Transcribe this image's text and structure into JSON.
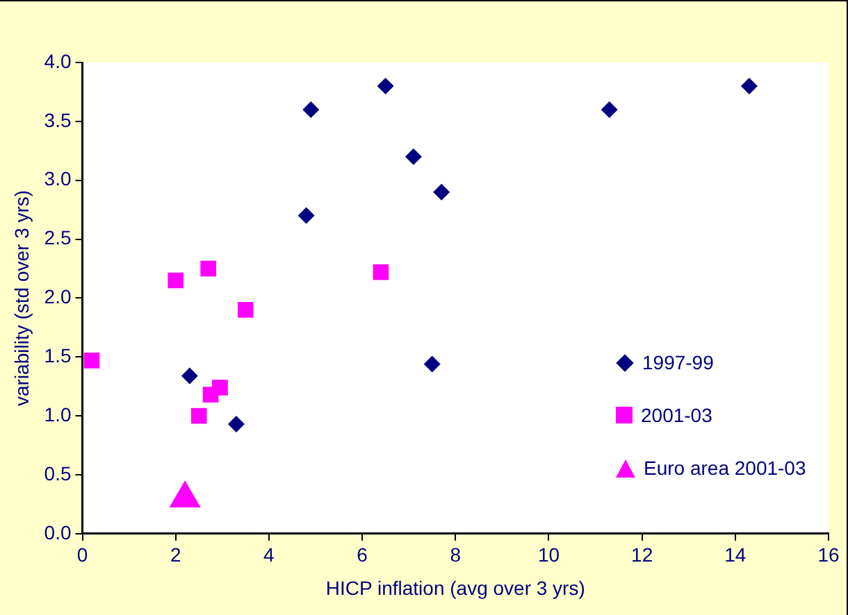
{
  "chart_data": {
    "type": "scatter",
    "xlabel": "HICP inflation (avg over 3 yrs)",
    "ylabel": "variability (std over 3 yrs)",
    "xlim": [
      0,
      16
    ],
    "xticks": [
      0,
      2,
      4,
      6,
      8,
      10,
      12,
      14,
      16
    ],
    "ylim": [
      0,
      4
    ],
    "yticks": [
      {
        "value": 0,
        "label": "0.0"
      },
      {
        "value": 0.5,
        "label": "0.5"
      },
      {
        "value": 1,
        "label": "1.0"
      },
      {
        "value": 1.5,
        "label": "1.5"
      },
      {
        "value": 2,
        "label": "2.0"
      },
      {
        "value": 2.5,
        "label": "2.5"
      },
      {
        "value": 3,
        "label": "3.0"
      },
      {
        "value": 3.5,
        "label": "3.5"
      },
      {
        "value": 4,
        "label": "4.0"
      }
    ],
    "grid": false,
    "legend": "bottom right",
    "series": [
      {
        "name": "1997-99",
        "color": "#000080",
        "marker": "diamond",
        "x": [
          6.5,
          4.9,
          11.3,
          14.3,
          7.1,
          7.7,
          4.8,
          2.3,
          7.5,
          3.3
        ],
        "values": [
          3.8,
          3.6,
          3.6,
          3.8,
          3.2,
          2.9,
          2.7,
          1.34,
          1.44,
          0.93
        ]
      },
      {
        "name": "2001-03",
        "color": "#ff00ff",
        "marker": "square",
        "x": [
          2.0,
          2.7,
          6.4,
          3.5,
          0.2,
          2.95,
          2.75,
          2.5
        ],
        "values": [
          2.15,
          2.25,
          2.22,
          1.9,
          1.47,
          1.24,
          1.18,
          1.0
        ]
      },
      {
        "name": "Euro area 2001-03",
        "color": "#ff00ff",
        "marker": "triangle",
        "x": [
          2.2
        ],
        "values": [
          0.3
        ]
      }
    ]
  }
}
